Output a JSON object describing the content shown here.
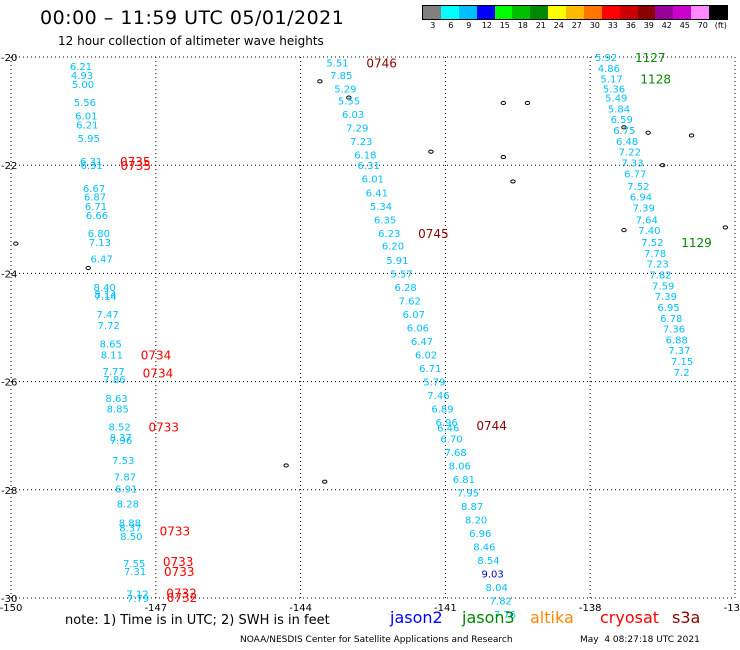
{
  "header": {
    "title": "00:00 – 11:59 UTC 05/01/2021",
    "subtitle": "12 hour collection of altimeter wave heights"
  },
  "colorbar": {
    "colors": [
      "#808080",
      "#00ffff",
      "#00bfff",
      "#0000ff",
      "#00ff00",
      "#00c000",
      "#008800",
      "#ffff00",
      "#ffbb00",
      "#ff7700",
      "#ff0000",
      "#cc0000",
      "#8b0000",
      "#990099",
      "#cc00cc",
      "#ff88ff",
      "#000000"
    ],
    "labels": [
      "3",
      "6",
      "9",
      "12",
      "15",
      "18",
      "21",
      "24",
      "27",
      "30",
      "33",
      "36",
      "39",
      "42",
      "45",
      "70",
      "(ft)"
    ]
  },
  "chart_data": {
    "type": "scatter",
    "title": "00:00 – 11:59 UTC 05/01/2021",
    "subtitle": "12 hour collection of altimeter wave heights",
    "xlim": [
      -150,
      -135
    ],
    "ylim": [
      -30,
      -20
    ],
    "x_tick_labels": [
      "-150",
      "-147",
      "-144",
      "-141",
      "-138",
      "-135"
    ],
    "y_tick_labels": [
      "-20",
      "-22",
      "-24",
      "-26",
      "-28",
      "-30"
    ],
    "grid": true,
    "tracks": [
      {
        "satellite": "cryosat",
        "color": "#00bfff",
        "lon_start": -148.8,
        "lon_end": -147.6,
        "values": [
          "6.21",
          "4.93",
          "5.00",
          "5.56",
          "6.01",
          "6.21",
          "5.95",
          "6.31",
          "6.31",
          "6.67",
          "6.87",
          "6.71",
          "6.66",
          "6.80",
          "7.13",
          "6.47",
          "8.40",
          "8.14",
          "7.14",
          "7.47",
          "7.72",
          "8.65",
          "8.11",
          "7.77",
          "7.86",
          "8.63",
          "8.85",
          "8.52",
          "8.37",
          "7.96",
          "7.53",
          "7.87",
          "6.91",
          "8.28",
          "8.88",
          "8.37",
          "8.50",
          "7.55",
          "7.31",
          "7.12",
          "7.79"
        ],
        "lats": [
          -20.17,
          -20.33,
          -20.5,
          -20.83,
          -21.08,
          -21.25,
          -21.5,
          -21.92,
          -22.0,
          -22.42,
          -22.58,
          -22.75,
          -22.92,
          -23.25,
          -23.42,
          -23.72,
          -24.25,
          -24.38,
          -24.42,
          -24.75,
          -24.95,
          -25.3,
          -25.5,
          -25.8,
          -25.95,
          -26.3,
          -26.5,
          -26.83,
          -27.02,
          -27.08,
          -27.45,
          -27.75,
          -27.98,
          -28.25,
          -28.6,
          -28.7,
          -28.85,
          -29.35,
          -29.5,
          -29.92,
          -30.0
        ],
        "time_labels": [
          {
            "text": "0735",
            "lat": -21.92
          },
          {
            "text": "0735",
            "lat": -22.0
          },
          {
            "text": "0734",
            "lat": -25.5
          },
          {
            "text": "0734",
            "lat": -25.83
          },
          {
            "text": "0733",
            "lat": -26.83
          },
          {
            "text": "0733",
            "lat": -28.75
          },
          {
            "text": "0733",
            "lat": -29.32
          },
          {
            "text": "0733",
            "lat": -29.5
          },
          {
            "text": "0732",
            "lat": -29.9
          },
          {
            "text": "0732",
            "lat": -29.98
          }
        ]
      },
      {
        "satellite": "s3a",
        "color": "#00bfff",
        "lon_start": -143.5,
        "lon_end": -140.1,
        "values": [
          "5.51",
          "7.85",
          "5.29",
          "5.55",
          "6.03",
          "7.29",
          "7.23",
          "6.18",
          "6.31",
          "6.01",
          "6.41",
          "5.34",
          "6.35",
          "6.23",
          "6.20",
          "5.91",
          "5.57",
          "6.28",
          "7.62",
          "6.07",
          "6.06",
          "6.47",
          "6.02",
          "6.71",
          "5.79",
          "7.46",
          "6.89",
          "6.96",
          "6.46",
          "6.70",
          "7.68",
          "8.06",
          "6.81",
          "7.95",
          "8.87",
          "8.20",
          "6.96",
          "8.46",
          "8.54",
          "9.03",
          "8.04",
          "7.82",
          "7.76"
        ],
        "lats": [
          -20.1,
          -20.33,
          -20.58,
          -20.8,
          -21.05,
          -21.3,
          -21.55,
          -21.8,
          -22.0,
          -22.25,
          -22.5,
          -22.75,
          -23.0,
          -23.25,
          -23.48,
          -23.75,
          -24.0,
          -24.25,
          -24.5,
          -24.75,
          -25.0,
          -25.25,
          -25.5,
          -25.75,
          -26.0,
          -26.25,
          -26.5,
          -26.75,
          -26.85,
          -27.05,
          -27.3,
          -27.55,
          -27.8,
          -28.05,
          -28.3,
          -28.55,
          -28.8,
          -29.05,
          -29.3,
          -29.55,
          -29.8,
          -30.05,
          -30.3
        ],
        "time_labels": [
          {
            "text": "0746",
            "lat": -20.1
          },
          {
            "text": "0745",
            "lat": -23.25
          },
          {
            "text": "0744",
            "lat": -26.8
          }
        ]
      },
      {
        "satellite": "jason3",
        "color": "#00bfff",
        "lon_start": -137.9,
        "lon_end": -135.1,
        "values": [
          "5.92",
          "4.86",
          "5.17",
          "5.36",
          "5.49",
          "5.84",
          "6.59",
          "6.75",
          "6.48",
          "7.22",
          "7.33",
          "6.77",
          "7.52",
          "6.94",
          "7.39",
          "7.64",
          "7.40",
          "7.52",
          "7.78",
          "7.23",
          "7.82",
          "7.59",
          "7.39",
          "6.95",
          "6.78",
          "7.36",
          "6.88",
          "7.37",
          "7.15",
          "7.2"
        ],
        "lats": [
          -20.0,
          -20.2,
          -20.4,
          -20.58,
          -20.75,
          -20.95,
          -21.15,
          -21.35,
          -21.55,
          -21.75,
          -21.95,
          -22.15,
          -22.38,
          -22.58,
          -22.78,
          -23.0,
          -23.2,
          -23.42,
          -23.62,
          -23.82,
          -24.02,
          -24.22,
          -24.42,
          -24.62,
          -24.82,
          -25.02,
          -25.22,
          -25.42,
          -25.62,
          -25.82
        ],
        "time_labels": [
          {
            "text": "1127",
            "lat": -20.0
          },
          {
            "text": "1128",
            "lat": -20.4
          },
          {
            "text": "1129",
            "lat": -23.42
          }
        ]
      }
    ]
  },
  "islands": [
    {
      "lon": -149.9,
      "lat": -23.45
    },
    {
      "lon": -148.4,
      "lat": -23.9
    },
    {
      "lon": -143.6,
      "lat": -20.45
    },
    {
      "lon": -143.0,
      "lat": -20.75
    },
    {
      "lon": -141.3,
      "lat": -21.75
    },
    {
      "lon": -139.8,
      "lat": -20.85
    },
    {
      "lon": -139.3,
      "lat": -20.85
    },
    {
      "lon": -139.8,
      "lat": -21.85
    },
    {
      "lon": -139.6,
      "lat": -22.3
    },
    {
      "lon": -137.3,
      "lat": -21.3
    },
    {
      "lon": -136.8,
      "lat": -21.4
    },
    {
      "lon": -135.9,
      "lat": -21.45
    },
    {
      "lon": -137.3,
      "lat": -23.2
    },
    {
      "lon": -136.5,
      "lat": -22.0
    },
    {
      "lon": -135.2,
      "lat": -23.15
    },
    {
      "lon": -144.3,
      "lat": -27.55
    },
    {
      "lon": -143.5,
      "lat": -27.85
    }
  ],
  "footer": {
    "note": "note:  1) Time is in UTC; 2) SWH is in feet",
    "legend": [
      {
        "name": "jason2",
        "color": "#0000ff"
      },
      {
        "name": "jason3",
        "color": "#008800"
      },
      {
        "name": "altika",
        "color": "#ff8800"
      },
      {
        "name": "cryosat",
        "color": "#ff0000"
      },
      {
        "name": "s3a",
        "color": "#8b0000"
      }
    ],
    "credit": "NOAA/NESDIS Center for Satellite Applications and Research",
    "timestamp": "May  4 08:27:18 UTC 2021"
  }
}
